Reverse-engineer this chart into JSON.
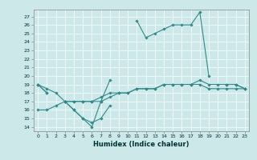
{
  "xlabel": "Humidex (Indice chaleur)",
  "bg_color": "#cce8e8",
  "grid_color": "#ffffff",
  "line_color": "#2e8b8b",
  "xlim": [
    -0.5,
    23.5
  ],
  "ylim": [
    13.5,
    27.8
  ],
  "yticks": [
    14,
    15,
    16,
    17,
    18,
    19,
    20,
    21,
    22,
    23,
    24,
    25,
    26,
    27
  ],
  "xticks": [
    0,
    1,
    2,
    3,
    4,
    5,
    6,
    7,
    8,
    9,
    10,
    11,
    12,
    13,
    14,
    15,
    16,
    17,
    18,
    19,
    20,
    21,
    22,
    23
  ],
  "series": [
    [
      19,
      18,
      null,
      17,
      16,
      15,
      14,
      17,
      19.5,
      null,
      null,
      26.5,
      24.5,
      25,
      25.5,
      26,
      26,
      26,
      27.5,
      20,
      null,
      19,
      19,
      18.5
    ],
    [
      19,
      18,
      null,
      17,
      16,
      15,
      14.5,
      15,
      16.5,
      null,
      null,
      null,
      null,
      null,
      null,
      null,
      null,
      null,
      null,
      null,
      null,
      null,
      null,
      null
    ],
    [
      19,
      18.5,
      18,
      17,
      17,
      17,
      17,
      17.5,
      18,
      18,
      18,
      18.5,
      18.5,
      18.5,
      19,
      19,
      19,
      19,
      19.5,
      19,
      19,
      19,
      19,
      18.5
    ],
    [
      16,
      16,
      16.5,
      17,
      17,
      17,
      17,
      17,
      17.5,
      18,
      18,
      18.5,
      18.5,
      18.5,
      19,
      19,
      19,
      19,
      19,
      18.5,
      18.5,
      18.5,
      18.5,
      18.5
    ]
  ]
}
